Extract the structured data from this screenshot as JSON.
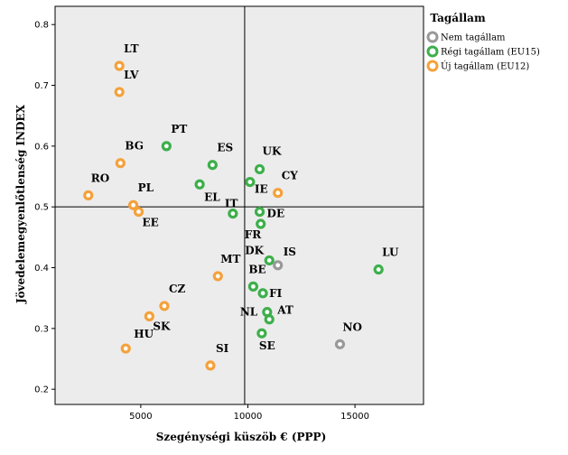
{
  "chart_data": {
    "type": "scatter",
    "xlabel": "Szegénységi küszöb € (PPP)",
    "ylabel": "Jövedelemegyenlőtlenség INDEX",
    "xlim": [
      1000,
      18200
    ],
    "ylim": [
      0.175,
      0.83
    ],
    "xticks": [
      5000,
      10000,
      15000
    ],
    "yticks": [
      0.2,
      0.3,
      0.4,
      0.5,
      0.6,
      0.7,
      0.8
    ],
    "reference_lines": {
      "x": 9850,
      "y": 0.5
    },
    "legend": {
      "title": "Tagállam",
      "placement": "top-right",
      "entries": [
        {
          "key": "non",
          "label": "Nem tagállam",
          "color": "#999999"
        },
        {
          "key": "eu15",
          "label": "Régi tagállam (EU15)",
          "color": "#3daf4b"
        },
        {
          "key": "eu12",
          "label": "Új tagállam (EU12)",
          "color": "#f5a13a"
        }
      ]
    },
    "points": [
      {
        "label": "LT",
        "x": 4000,
        "y": 0.732,
        "group": "eu12"
      },
      {
        "label": "LV",
        "x": 4000,
        "y": 0.689,
        "group": "eu12"
      },
      {
        "label": "BG",
        "x": 4050,
        "y": 0.572,
        "group": "eu12"
      },
      {
        "label": "RO",
        "x": 2550,
        "y": 0.519,
        "group": "eu12"
      },
      {
        "label": "PL",
        "x": 4650,
        "y": 0.503,
        "group": "eu12"
      },
      {
        "label": "EE",
        "x": 4900,
        "y": 0.492,
        "group": "eu12"
      },
      {
        "label": "PT",
        "x": 6200,
        "y": 0.6,
        "group": "eu15"
      },
      {
        "label": "ES",
        "x": 8350,
        "y": 0.569,
        "group": "eu15"
      },
      {
        "label": "EL",
        "x": 7750,
        "y": 0.537,
        "group": "eu15"
      },
      {
        "label": "IT",
        "x": 9300,
        "y": 0.489,
        "group": "eu15"
      },
      {
        "label": "UK",
        "x": 10550,
        "y": 0.562,
        "group": "eu15"
      },
      {
        "label": "IE",
        "x": 10100,
        "y": 0.541,
        "group": "eu15"
      },
      {
        "label": "CY",
        "x": 11400,
        "y": 0.523,
        "group": "eu12"
      },
      {
        "label": "DE",
        "x": 10550,
        "y": 0.492,
        "group": "eu15"
      },
      {
        "label": "FR",
        "x": 10600,
        "y": 0.472,
        "group": "eu15"
      },
      {
        "label": "DK",
        "x": 11000,
        "y": 0.412,
        "group": "eu15"
      },
      {
        "label": "IS",
        "x": 11400,
        "y": 0.404,
        "group": "non"
      },
      {
        "label": "MT",
        "x": 8600,
        "y": 0.386,
        "group": "eu12"
      },
      {
        "label": "BE",
        "x": 10250,
        "y": 0.369,
        "group": "eu15"
      },
      {
        "label": "FI",
        "x": 10700,
        "y": 0.358,
        "group": "eu15"
      },
      {
        "label": "NL",
        "x": 10900,
        "y": 0.327,
        "group": "eu15"
      },
      {
        "label": "AT",
        "x": 11000,
        "y": 0.315,
        "group": "eu15"
      },
      {
        "label": "SE",
        "x": 10650,
        "y": 0.292,
        "group": "eu15"
      },
      {
        "label": "LU",
        "x": 16100,
        "y": 0.397,
        "group": "eu15"
      },
      {
        "label": "NO",
        "x": 14300,
        "y": 0.274,
        "group": "non"
      },
      {
        "label": "CZ",
        "x": 6100,
        "y": 0.337,
        "group": "eu12"
      },
      {
        "label": "SK",
        "x": 5400,
        "y": 0.32,
        "group": "eu12"
      },
      {
        "label": "HU",
        "x": 4300,
        "y": 0.267,
        "group": "eu12"
      },
      {
        "label": "SI",
        "x": 8250,
        "y": 0.239,
        "group": "eu12"
      }
    ]
  }
}
